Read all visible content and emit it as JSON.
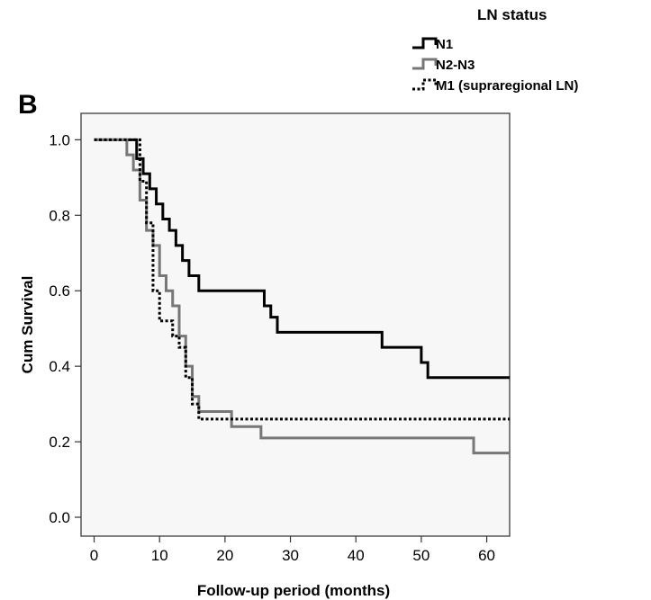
{
  "chart_data": {
    "type": "line",
    "step": true,
    "panel_label": "B",
    "xlabel": "Follow-up period (months)",
    "ylabel": "Cum Survival",
    "xlim": [
      -2,
      63.5
    ],
    "ylim": [
      -0.05,
      1.07
    ],
    "xticks": [
      0,
      10,
      20,
      30,
      40,
      50,
      60
    ],
    "yticks": [
      "0.0",
      "0.2",
      "0.4",
      "0.6",
      "0.8",
      "1.0"
    ],
    "legend": {
      "title": "LN status",
      "placement": "top-right, outside plot"
    },
    "series": [
      {
        "name": "N1",
        "color": "#000000",
        "style": "solid",
        "x": [
          0,
          4,
          6.5,
          7.5,
          8.5,
          9.5,
          10.5,
          11.5,
          12.5,
          13.5,
          14.5,
          16,
          26,
          27,
          28,
          44,
          50,
          51,
          63.5
        ],
        "y": [
          1.0,
          1.0,
          0.95,
          0.91,
          0.87,
          0.83,
          0.79,
          0.76,
          0.72,
          0.68,
          0.64,
          0.6,
          0.56,
          0.53,
          0.49,
          0.45,
          0.41,
          0.37,
          0.37
        ]
      },
      {
        "name": "N2-N3",
        "color": "#777777",
        "style": "solid",
        "x": [
          0,
          4,
          5,
          6,
          7,
          8,
          9,
          10,
          11,
          12,
          13,
          14,
          15,
          16,
          21,
          25.5,
          58,
          63.5
        ],
        "y": [
          1.0,
          1.0,
          0.96,
          0.92,
          0.84,
          0.76,
          0.72,
          0.64,
          0.6,
          0.56,
          0.48,
          0.4,
          0.32,
          0.28,
          0.24,
          0.21,
          0.17,
          0.17
        ]
      },
      {
        "name": "M1 (supraregional LN)",
        "color": "#000000",
        "style": "dotted",
        "x": [
          0,
          6,
          7,
          8,
          9,
          10,
          11,
          12,
          13,
          14,
          15,
          16,
          63.5
        ],
        "y": [
          1.0,
          1.0,
          0.89,
          0.78,
          0.6,
          0.52,
          0.52,
          0.48,
          0.45,
          0.37,
          0.3,
          0.26,
          0.26
        ]
      }
    ]
  }
}
